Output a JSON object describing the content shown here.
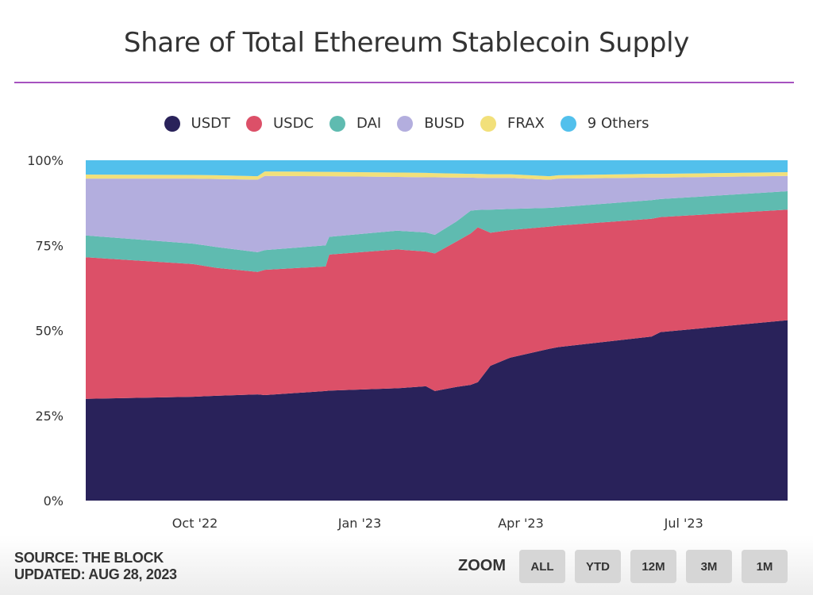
{
  "title": "Share of Total Ethereum Stablecoin Supply",
  "legend": [
    {
      "label": "USDT",
      "color": "#29225a"
    },
    {
      "label": "USDC",
      "color": "#dc5068"
    },
    {
      "label": "DAI",
      "color": "#5fbbb0"
    },
    {
      "label": "BUSD",
      "color": "#b3aede"
    },
    {
      "label": "FRAX",
      "color": "#f2e07a"
    },
    {
      "label": "9 Others",
      "color": "#52c0ec"
    }
  ],
  "footer": {
    "source": "SOURCE: THE BLOCK",
    "updated": "UPDATED: AUG 28, 2023",
    "zoom_label": "ZOOM",
    "zoom_buttons": [
      "ALL",
      "YTD",
      "12M",
      "3M",
      "1M"
    ]
  },
  "chart_data": {
    "type": "area",
    "stacked": "percent",
    "title": "Share of Total Ethereum Stablecoin Supply",
    "xlabel": "",
    "ylabel": "",
    "xlim": [
      "2022-08-01",
      "2023-08-28"
    ],
    "ylim": [
      0,
      100
    ],
    "y_ticks": [
      0,
      25,
      50,
      75,
      100
    ],
    "y_tick_labels": [
      "0%",
      "25%",
      "50%",
      "75%",
      "100%"
    ],
    "x_ticks": [
      "2022-10-01",
      "2023-01-01",
      "2023-04-01",
      "2023-07-01"
    ],
    "x_tick_labels": [
      "Oct '22",
      "Jan '23",
      "Apr '23",
      "Jul '23"
    ],
    "grid": false,
    "legend_position": "top",
    "dates": [
      "2022-08-01",
      "2022-09-30",
      "2022-10-13",
      "2022-11-05",
      "2022-11-09",
      "2022-12-13",
      "2022-12-15",
      "2023-01-22",
      "2023-02-07",
      "2023-02-12",
      "2023-02-24",
      "2023-03-04",
      "2023-03-08",
      "2023-03-15",
      "2023-03-26",
      "2023-04-17",
      "2023-04-22",
      "2023-06-13",
      "2023-06-18",
      "2023-08-28"
    ],
    "series": [
      {
        "name": "USDT",
        "color": "#29225a",
        "values": [
          29.9,
          30.5,
          30.8,
          31.2,
          31.0,
          32.2,
          32.3,
          33.0,
          33.6,
          32.2,
          33.4,
          34.0,
          34.8,
          39.6,
          42.0,
          44.6,
          45.1,
          48.2,
          49.5,
          53.0
        ]
      },
      {
        "name": "USDC",
        "color": "#dc5068",
        "values": [
          41.6,
          39.0,
          37.6,
          36.0,
          36.8,
          36.6,
          40.0,
          40.8,
          39.6,
          40.4,
          42.7,
          44.5,
          45.5,
          39.1,
          37.5,
          35.9,
          35.7,
          34.6,
          33.8,
          32.5
        ]
      },
      {
        "name": "DAI",
        "color": "#5fbbb0",
        "values": [
          6.4,
          6.0,
          6.1,
          5.8,
          5.8,
          6.2,
          5.2,
          5.5,
          5.6,
          5.5,
          5.9,
          6.7,
          5.1,
          6.8,
          6.2,
          5.5,
          5.4,
          5.5,
          5.3,
          5.4
        ]
      },
      {
        "name": "BUSD",
        "color": "#b3aede",
        "values": [
          16.7,
          19.1,
          20.0,
          21.3,
          21.8,
          20.3,
          17.8,
          15.8,
          16.2,
          16.9,
          12.9,
          9.7,
          9.4,
          9.3,
          9.1,
          8.3,
          8.4,
          6.6,
          6.3,
          4.5
        ]
      },
      {
        "name": "FRAX",
        "color": "#f2e07a",
        "values": [
          1.2,
          1.1,
          1.1,
          1.0,
          1.3,
          1.3,
          1.3,
          1.3,
          1.3,
          1.2,
          1.2,
          1.1,
          1.2,
          1.1,
          1.1,
          1.0,
          1.0,
          1.1,
          1.1,
          1.1
        ]
      },
      {
        "name": "9 Others",
        "color": "#52c0ec",
        "values": [
          4.2,
          4.3,
          4.4,
          4.7,
          3.3,
          3.4,
          3.4,
          3.6,
          3.7,
          3.8,
          3.9,
          4.0,
          4.0,
          4.1,
          4.1,
          4.7,
          4.4,
          4.0,
          4.0,
          3.5
        ]
      }
    ]
  }
}
